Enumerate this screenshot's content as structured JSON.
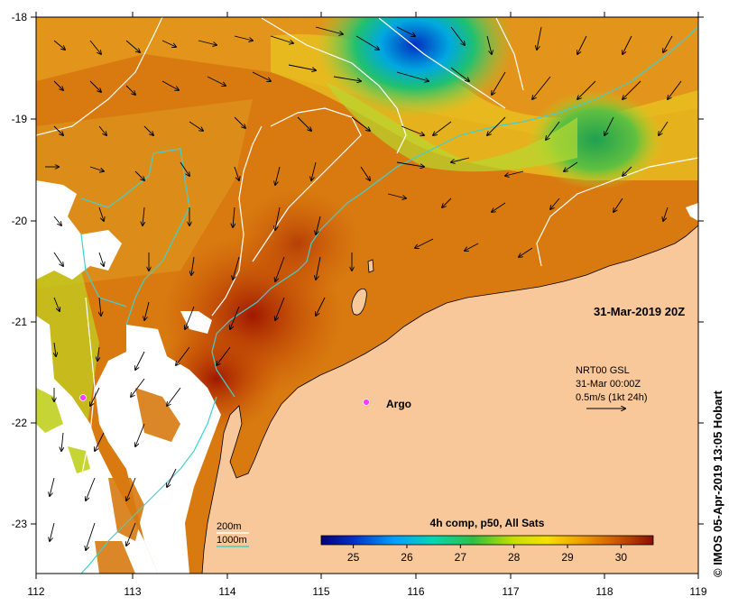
{
  "map": {
    "datetime": "31-Mar-2019 20Z",
    "credit": "© IMOS 05-Apr-2019 13:05 Hobart",
    "lon_ticks": [
      "112",
      "113",
      "114",
      "115",
      "116",
      "117",
      "118",
      "119"
    ],
    "lat_ticks": [
      "-18",
      "-19",
      "-20",
      "-21",
      "-22",
      "-23"
    ],
    "currents": {
      "source": "NRT00 GSL",
      "date": "31-Mar 00:00Z",
      "scale_label": "0.5m/s (1kt 24h)"
    },
    "argo_label": "Argo",
    "isobaths": [
      {
        "label": "200m",
        "color": "#ffffff"
      },
      {
        "label": "1000m",
        "color": "#3fd0d0"
      }
    ],
    "colorbar": {
      "title": "4h comp, p50, All Sats",
      "ticks": [
        "25",
        "26",
        "27",
        "28",
        "29",
        "30"
      ],
      "range": [
        24.4,
        30.6
      ]
    },
    "colors": {
      "land": "#f8c89a",
      "no_data": "#ffffff",
      "argo": "#ff3cff"
    }
  }
}
